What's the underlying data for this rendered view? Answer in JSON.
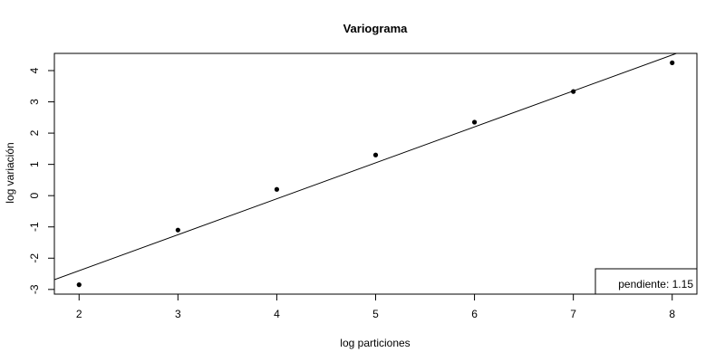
{
  "chart_data": {
    "type": "scatter",
    "title": "Variograma",
    "xlabel": "log particiones",
    "ylabel": "log variación",
    "xlim": [
      1.75,
      8.25
    ],
    "ylim": [
      -3.15,
      4.55
    ],
    "x_ticks": [
      2,
      3,
      4,
      5,
      6,
      7,
      8
    ],
    "y_ticks": [
      -3,
      -2,
      -1,
      0,
      1,
      2,
      3,
      4
    ],
    "x_tick_labels": [
      "2",
      "3",
      "4",
      "5",
      "6",
      "7",
      "8"
    ],
    "y_tick_labels": [
      "-3",
      "-2",
      "-1",
      "0",
      "1",
      "2",
      "3",
      "4"
    ],
    "points": [
      {
        "x": 2,
        "y": -2.85
      },
      {
        "x": 3,
        "y": -1.1
      },
      {
        "x": 4,
        "y": 0.2
      },
      {
        "x": 5,
        "y": 1.3
      },
      {
        "x": 6,
        "y": 2.35
      },
      {
        "x": 7,
        "y": 3.33
      },
      {
        "x": 8,
        "y": 4.25
      }
    ],
    "fit_line": {
      "slope": 1.15,
      "intercept": -4.7
    },
    "legend": {
      "text": "pendiente: 1.15",
      "position": "bottom-right"
    },
    "grid": false
  }
}
